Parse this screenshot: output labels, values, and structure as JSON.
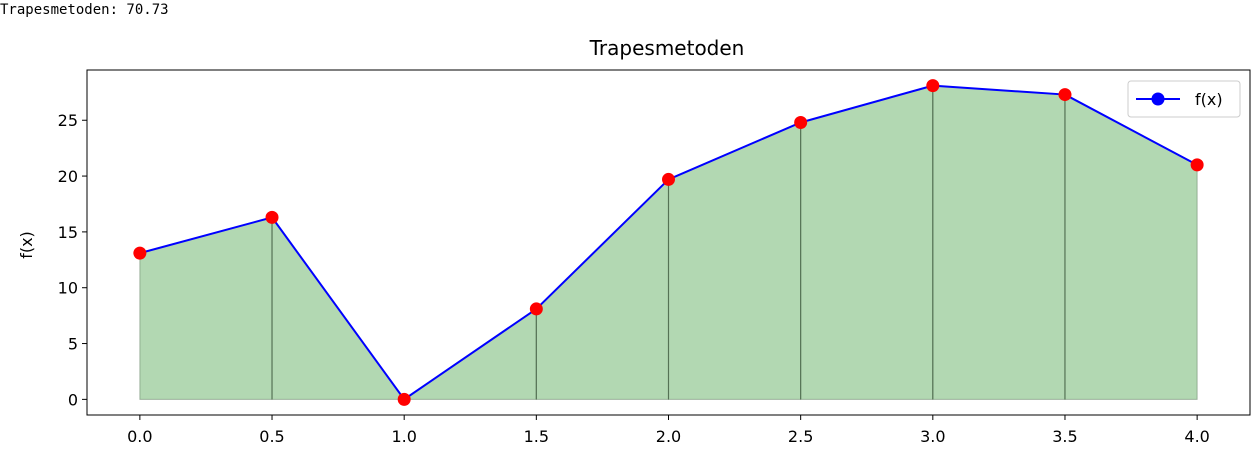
{
  "output": {
    "text": "Trapesmetoden: 70.73"
  },
  "colors": {
    "line": "#0000ff",
    "markers": "#ff0000",
    "fill": "#b2d8b2",
    "fill_edge": "#4f6b4f",
    "axes": "#000000"
  },
  "chart_data": {
    "type": "area",
    "title": "Trapesmetoden",
    "xlabel": "",
    "ylabel": "f(x)",
    "x": [
      0.0,
      0.5,
      1.0,
      1.5,
      2.0,
      2.5,
      3.0,
      3.5,
      4.0
    ],
    "series": [
      {
        "name": "f(x)",
        "values": [
          13.1,
          16.3,
          0.0,
          8.1,
          19.7,
          24.8,
          28.1,
          27.3,
          21.0
        ]
      }
    ],
    "xticks": [
      0.0,
      0.5,
      1.0,
      1.5,
      2.0,
      2.5,
      3.0,
      3.5,
      4.0
    ],
    "xtick_labels": [
      "0.0",
      "0.5",
      "1.0",
      "1.5",
      "2.0",
      "2.5",
      "3.0",
      "3.5",
      "4.0"
    ],
    "yticks": [
      0,
      5,
      10,
      15,
      20,
      25
    ],
    "ytick_labels": [
      "0",
      "5",
      "10",
      "15",
      "20",
      "25"
    ],
    "xlim": [
      -0.2,
      4.2
    ],
    "ylim": [
      -1.4,
      29.5
    ],
    "grid": false,
    "legend_position": "top-right",
    "markers": "red circles",
    "fill": "green trapezoids under curve"
  }
}
